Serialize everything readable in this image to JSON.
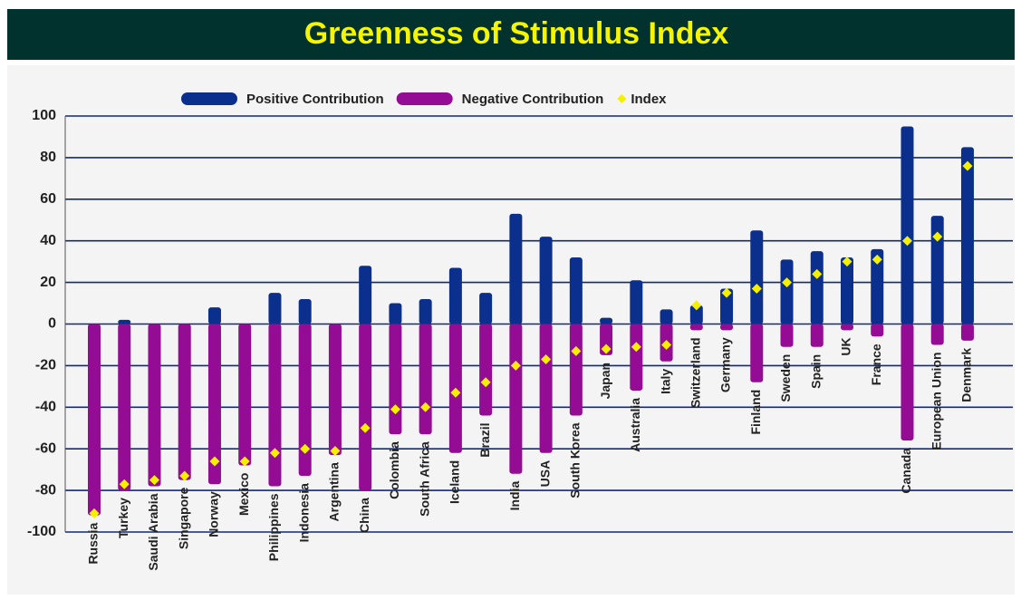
{
  "chart_data": {
    "type": "bar",
    "title": "Greenness of Stimulus Index",
    "categories": [
      "Russia",
      "Turkey",
      "Saudi Arabia",
      "Singapore",
      "Norway",
      "Mexico",
      "Philippines",
      "Indonesia",
      "Argentina",
      "China",
      "Colombia",
      "South Africa",
      "Iceland",
      "Brazil",
      "India",
      "USA",
      "South Korea",
      "Japan",
      "Australia",
      "Italy",
      "Switzerland",
      "Germany",
      "Finland",
      "Sweden",
      "Spain",
      "UK",
      "France",
      "Canada",
      "European Union",
      "Denmark"
    ],
    "series": [
      {
        "name": "Positive Contribution",
        "color": "#0b2f8c",
        "marker": "bar",
        "values": [
          0,
          2,
          0,
          0,
          8,
          0,
          15,
          12,
          0,
          28,
          10,
          12,
          27,
          15,
          53,
          42,
          32,
          3,
          21,
          7,
          9,
          17,
          45,
          31,
          35,
          32,
          36,
          95,
          52,
          85
        ]
      },
      {
        "name": "Negative Contribution",
        "color": "#930c93",
        "marker": "bar",
        "values": [
          -92,
          -80,
          -78,
          -75,
          -77,
          -68,
          -78,
          -73,
          -63,
          -80,
          -53,
          -53,
          -62,
          -44,
          -72,
          -62,
          -44,
          -15,
          -32,
          -18,
          -3,
          -3,
          -28,
          -11,
          -11,
          -3,
          -6,
          -56,
          -10,
          -8
        ]
      },
      {
        "name": "Index",
        "color": "#f5ef00",
        "marker": "diamond",
        "values": [
          -91,
          -77,
          -75,
          -73,
          -66,
          -66,
          -62,
          -60,
          -61,
          -50,
          -41,
          -40,
          -33,
          -28,
          -20,
          -17,
          -13,
          -12,
          -11,
          -10,
          9,
          15,
          17,
          20,
          24,
          30,
          31,
          40,
          42,
          76
        ]
      }
    ],
    "ylim": [
      -100,
      100
    ],
    "yticks": [
      -100,
      -80,
      -60,
      -40,
      -20,
      0,
      20,
      40,
      60,
      80,
      100
    ],
    "grid": true,
    "legend": "top"
  }
}
